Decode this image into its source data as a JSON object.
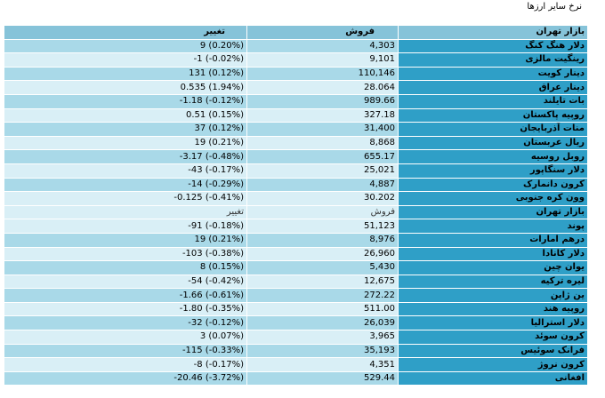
{
  "title": "نرخ سایر ارزها",
  "headers": {
    "market": "بازار تهران",
    "sell": "فروش",
    "change": "تغییر"
  },
  "group1": [
    {
      "name": "دلار هنگ کنگ",
      "sell": "4,303",
      "change": "9 (0.20%)"
    },
    {
      "name": "رینگیت مالزی",
      "sell": "9,101",
      "change": "-1 (-0.02%)"
    },
    {
      "name": "دینار کویت",
      "sell": "110,146",
      "change": "131 (0.12%)"
    },
    {
      "name": "دینار عراق",
      "sell": "28.064",
      "change": "0.535 (1.94%)"
    },
    {
      "name": "بات تایلند",
      "sell": "989.66",
      "change": "-1.18 (-0.12%)"
    },
    {
      "name": "روپیه پاکستان",
      "sell": "327.18",
      "change": "0.51 (0.15%)"
    },
    {
      "name": "منات آذربایجان",
      "sell": "31,400",
      "change": "37 (0.12%)"
    },
    {
      "name": "ریال عربستان",
      "sell": "8,868",
      "change": "19 (0.21%)"
    },
    {
      "name": "روبل روسیه",
      "sell": "655.17",
      "change": "-3.17 (-0.48%)"
    },
    {
      "name": "دلار سنگاپور",
      "sell": "25,021",
      "change": "-43 (-0.17%)"
    },
    {
      "name": "کرون دانمارک",
      "sell": "4,887",
      "change": "-14 (-0.29%)"
    },
    {
      "name": "وون کره جنوبی",
      "sell": "30.202",
      "change": "-0.125 (-0.41%)"
    }
  ],
  "group2": [
    {
      "name": "پوند",
      "sell": "51,123",
      "change": "-91 (-0.18%)"
    },
    {
      "name": "درهم امارات",
      "sell": "8,976",
      "change": "19 (0.21%)"
    },
    {
      "name": "دلار کانادا",
      "sell": "26,960",
      "change": "-103 (-0.38%)"
    },
    {
      "name": "یوان چین",
      "sell": "5,430",
      "change": "8 (0.15%)"
    },
    {
      "name": "لیره ترکیه",
      "sell": "12,675",
      "change": "-54 (-0.42%)"
    },
    {
      "name": "ین ژاپن",
      "sell": "272.22",
      "change": "-1.66 (-0.61%)"
    },
    {
      "name": "روپیه هند",
      "sell": "511.00",
      "change": "-1.80 (-0.35%)"
    },
    {
      "name": "دلار استرالیا",
      "sell": "26,039",
      "change": "-32 (-0.12%)"
    },
    {
      "name": "کرون سوئد",
      "sell": "3,965",
      "change": "3 (0.07%)"
    },
    {
      "name": "فرانک سوئیس",
      "sell": "35,193",
      "change": "-115 (-0.33%)"
    },
    {
      "name": "کرون نروژ",
      "sell": "4,351",
      "change": "-8 (-0.17%)"
    },
    {
      "name": "افغانی",
      "sell": "529.44",
      "change": "-20.46 (-3.72%)"
    }
  ]
}
